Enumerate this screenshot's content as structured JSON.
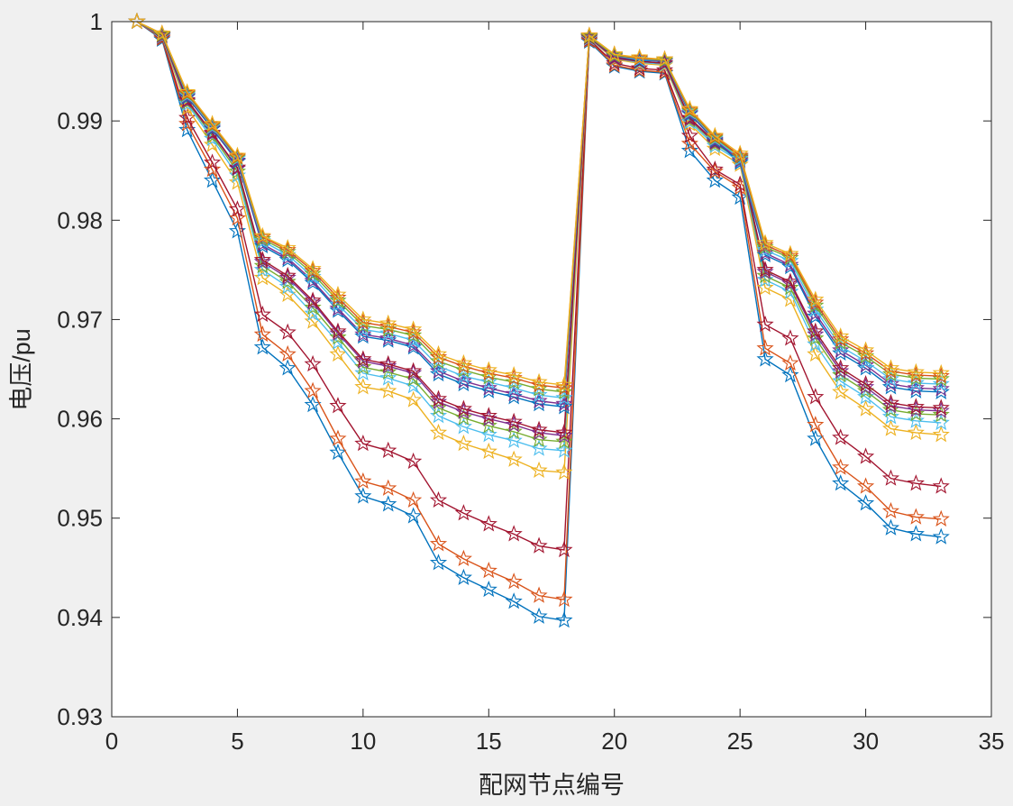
{
  "chart_data": {
    "type": "line",
    "title": "",
    "xlabel": "配网节点编号",
    "ylabel": "电压/pu",
    "xlim": [
      0,
      35
    ],
    "ylim": [
      0.93,
      1.0
    ],
    "xticks": [
      0,
      5,
      10,
      15,
      20,
      25,
      30,
      35
    ],
    "xtick_labels": [
      "0",
      "5",
      "10",
      "15",
      "20",
      "25",
      "30",
      "35"
    ],
    "yticks": [
      0.93,
      0.94,
      0.95,
      0.96,
      0.97,
      0.98,
      0.99,
      1.0
    ],
    "ytick_labels": [
      "0.93",
      "0.94",
      "0.95",
      "0.96",
      "0.97",
      "0.98",
      "0.99",
      "1"
    ],
    "grid": false,
    "marker": "star",
    "x": [
      1,
      2,
      3,
      4,
      5,
      6,
      7,
      8,
      9,
      10,
      11,
      12,
      13,
      14,
      15,
      16,
      17,
      18,
      19,
      20,
      21,
      22,
      23,
      24,
      25,
      26,
      27,
      28,
      29,
      30,
      31,
      32,
      33
    ],
    "series": [
      {
        "color": "#0072BD",
        "values": [
          1.0,
          0.9982,
          0.9891,
          0.984,
          0.9789,
          0.9672,
          0.9651,
          0.9614,
          0.9566,
          0.9522,
          0.9514,
          0.9502,
          0.9455,
          0.944,
          0.9428,
          0.9416,
          0.9401,
          0.9397,
          0.998,
          0.9955,
          0.995,
          0.9948,
          0.987,
          0.984,
          0.9823,
          0.966,
          0.9644,
          0.958,
          0.9535,
          0.9515,
          0.949,
          0.9484,
          0.9481
        ]
      },
      {
        "color": "#D95319",
        "values": [
          1.0,
          0.9983,
          0.9897,
          0.9851,
          0.9802,
          0.9685,
          0.9665,
          0.9628,
          0.958,
          0.9537,
          0.953,
          0.9518,
          0.9474,
          0.9459,
          0.9447,
          0.9436,
          0.9422,
          0.9418,
          0.9981,
          0.9956,
          0.9951,
          0.9949,
          0.9877,
          0.9849,
          0.9833,
          0.9671,
          0.9656,
          0.9594,
          0.9551,
          0.9532,
          0.9507,
          0.9501,
          0.9499
        ]
      },
      {
        "color": "#A2142F",
        "values": [
          1.0,
          0.9984,
          0.9903,
          0.9858,
          0.9811,
          0.9705,
          0.9687,
          0.9655,
          0.9613,
          0.9575,
          0.9568,
          0.9557,
          0.9518,
          0.9505,
          0.9494,
          0.9484,
          0.9472,
          0.9468,
          0.9982,
          0.9958,
          0.9953,
          0.9951,
          0.9885,
          0.9851,
          0.9836,
          0.9695,
          0.9681,
          0.9622,
          0.9581,
          0.9562,
          0.954,
          0.9535,
          0.9532
        ]
      },
      {
        "color": "#EDB120",
        "values": [
          1.0,
          0.9985,
          0.9913,
          0.9876,
          0.9838,
          0.9742,
          0.9725,
          0.9698,
          0.9665,
          0.9632,
          0.9628,
          0.9619,
          0.9586,
          0.9575,
          0.9567,
          0.9559,
          0.9548,
          0.9546,
          0.9983,
          0.9962,
          0.9958,
          0.9956,
          0.9897,
          0.9872,
          0.9856,
          0.9732,
          0.972,
          0.9665,
          0.9627,
          0.961,
          0.959,
          0.9586,
          0.9584
        ]
      },
      {
        "color": "#4DBEEE",
        "values": [
          1.0,
          0.9985,
          0.9917,
          0.9882,
          0.9845,
          0.975,
          0.9733,
          0.9706,
          0.9677,
          0.9646,
          0.9641,
          0.9633,
          0.9603,
          0.9592,
          0.9584,
          0.9578,
          0.957,
          0.9568,
          0.9983,
          0.9963,
          0.9959,
          0.9957,
          0.9899,
          0.9875,
          0.9859,
          0.974,
          0.9728,
          0.9675,
          0.9638,
          0.9622,
          0.9602,
          0.9598,
          0.9596
        ]
      },
      {
        "color": "#77AC30",
        "values": [
          1.0,
          0.9986,
          0.9919,
          0.9885,
          0.9849,
          0.9754,
          0.9738,
          0.9712,
          0.9682,
          0.9652,
          0.9647,
          0.964,
          0.9611,
          0.9601,
          0.9593,
          0.9587,
          0.9579,
          0.9577,
          0.9984,
          0.9963,
          0.996,
          0.9958,
          0.9901,
          0.9877,
          0.9861,
          0.9744,
          0.9732,
          0.9681,
          0.9644,
          0.9628,
          0.9609,
          0.9605,
          0.9604
        ]
      },
      {
        "color": "#7E2F8E",
        "values": [
          1.0,
          0.9986,
          0.992,
          0.9887,
          0.9852,
          0.9758,
          0.9742,
          0.9717,
          0.9686,
          0.9658,
          0.9653,
          0.9646,
          0.9617,
          0.9607,
          0.96,
          0.9594,
          0.9586,
          0.9583,
          0.9984,
          0.9963,
          0.996,
          0.9958,
          0.9902,
          0.9878,
          0.9862,
          0.9748,
          0.9736,
          0.9685,
          0.9648,
          0.9632,
          0.9613,
          0.9609,
          0.9608
        ]
      },
      {
        "color": "#A2142F",
        "values": [
          1.0,
          0.9986,
          0.9921,
          0.9888,
          0.9853,
          0.976,
          0.9744,
          0.9719,
          0.9688,
          0.966,
          0.9655,
          0.9648,
          0.962,
          0.961,
          0.9603,
          0.9597,
          0.9589,
          0.9586,
          0.9984,
          0.9964,
          0.996,
          0.9958,
          0.9903,
          0.9879,
          0.9863,
          0.975,
          0.9738,
          0.9688,
          0.9651,
          0.9635,
          0.9616,
          0.9612,
          0.9611
        ]
      },
      {
        "color": "#0072BD",
        "values": [
          1.0,
          0.9987,
          0.9924,
          0.9892,
          0.9859,
          0.9774,
          0.976,
          0.9737,
          0.9709,
          0.9683,
          0.9679,
          0.9672,
          0.9645,
          0.9635,
          0.9628,
          0.9622,
          0.9615,
          0.9612,
          0.9985,
          0.9965,
          0.9961,
          0.996,
          0.9907,
          0.988,
          0.9858,
          0.9765,
          0.9753,
          0.9703,
          0.9666,
          0.9651,
          0.9632,
          0.9628,
          0.9627
        ]
      },
      {
        "color": "#7E2F8E",
        "values": [
          1.0,
          0.9987,
          0.9925,
          0.9893,
          0.986,
          0.9776,
          0.9762,
          0.9739,
          0.9711,
          0.9685,
          0.9681,
          0.9674,
          0.9648,
          0.9638,
          0.9631,
          0.9625,
          0.9618,
          0.9615,
          0.9985,
          0.9965,
          0.9962,
          0.996,
          0.9908,
          0.9881,
          0.986,
          0.9767,
          0.9755,
          0.9706,
          0.9669,
          0.9654,
          0.9635,
          0.9631,
          0.963
        ]
      },
      {
        "color": "#4DBEEE",
        "values": [
          1.0,
          0.9987,
          0.9926,
          0.9894,
          0.9862,
          0.9779,
          0.9765,
          0.9743,
          0.9715,
          0.969,
          0.9686,
          0.9679,
          0.9653,
          0.9643,
          0.9637,
          0.9631,
          0.9624,
          0.9621,
          0.9985,
          0.9966,
          0.9962,
          0.9961,
          0.9909,
          0.9882,
          0.9862,
          0.977,
          0.9759,
          0.971,
          0.9673,
          0.9658,
          0.964,
          0.9636,
          0.9635
        ]
      },
      {
        "color": "#77AC30",
        "values": [
          1.0,
          0.9987,
          0.9927,
          0.9895,
          0.9863,
          0.9781,
          0.9768,
          0.9746,
          0.9719,
          0.9694,
          0.969,
          0.9684,
          0.9658,
          0.9649,
          0.9642,
          0.9637,
          0.963,
          0.9627,
          0.9985,
          0.9966,
          0.9963,
          0.9961,
          0.991,
          0.9883,
          0.9864,
          0.9773,
          0.9762,
          0.9714,
          0.9677,
          0.9663,
          0.9645,
          0.9641,
          0.964
        ]
      },
      {
        "color": "#D95319",
        "values": [
          1.0,
          0.9988,
          0.9928,
          0.9896,
          0.9864,
          0.9783,
          0.977,
          0.9749,
          0.9722,
          0.9697,
          0.9693,
          0.9687,
          0.9662,
          0.9653,
          0.9646,
          0.9641,
          0.9634,
          0.9631,
          0.9986,
          0.9967,
          0.9963,
          0.9962,
          0.9911,
          0.9884,
          0.9865,
          0.9775,
          0.9764,
          0.9717,
          0.968,
          0.9666,
          0.9648,
          0.9644,
          0.9643
        ]
      },
      {
        "color": "#EDB120",
        "values": [
          1.0,
          0.9988,
          0.9929,
          0.9897,
          0.9865,
          0.9784,
          0.9772,
          0.9751,
          0.9725,
          0.97,
          0.9696,
          0.969,
          0.9665,
          0.9656,
          0.9649,
          0.9644,
          0.9637,
          0.9634,
          0.9986,
          0.9967,
          0.9964,
          0.9962,
          0.9912,
          0.9885,
          0.9867,
          0.9777,
          0.9766,
          0.972,
          0.9683,
          0.9669,
          0.9651,
          0.9647,
          0.9646
        ]
      }
    ]
  }
}
